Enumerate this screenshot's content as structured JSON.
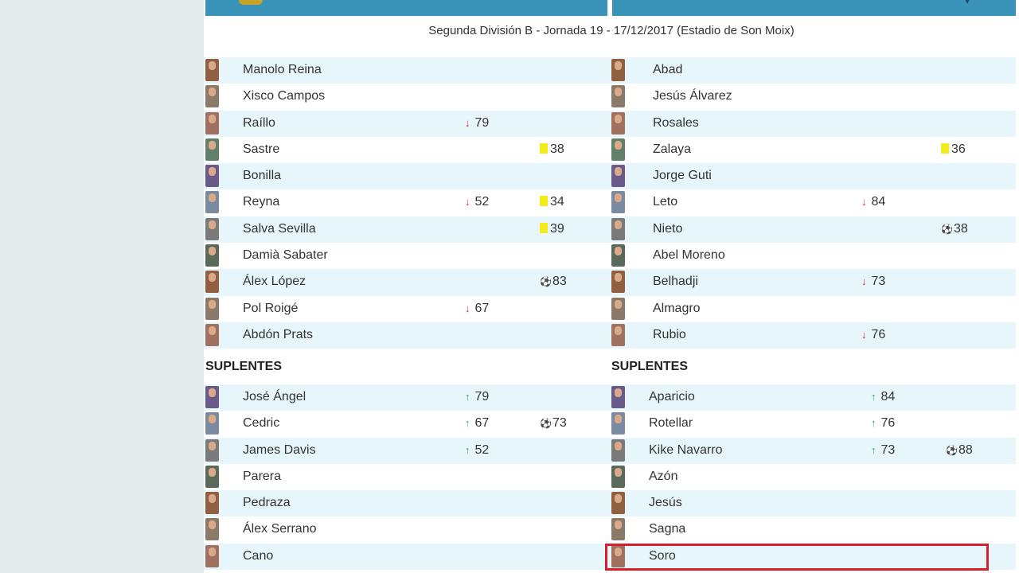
{
  "match": {
    "subtitle": "Segunda División B - Jornada 19 - 17/12/2017 (Estadio de Son Moix)"
  },
  "home": {
    "starters": [
      {
        "name": "Manolo Reina"
      },
      {
        "name": "Xisco Campos"
      },
      {
        "name": "Raíllo",
        "sub_out": "79"
      },
      {
        "name": "Sastre",
        "card": "38"
      },
      {
        "name": "Bonilla"
      },
      {
        "name": "Reyna",
        "sub_out": "52",
        "card": "34"
      },
      {
        "name": "Salva Sevilla",
        "card": "39"
      },
      {
        "name": "Damià Sabater"
      },
      {
        "name": "Álex López",
        "goal": "83"
      },
      {
        "name": "Pol Roigé",
        "sub_out": "67"
      },
      {
        "name": "Abdón Prats"
      }
    ],
    "subs_label": "SUPLENTES",
    "subs": [
      {
        "name": "José Ángel",
        "sub_in": "79"
      },
      {
        "name": "Cedric",
        "sub_in": "67",
        "goal": "73"
      },
      {
        "name": "James Davis",
        "sub_in": "52"
      },
      {
        "name": "Parera"
      },
      {
        "name": "Pedraza"
      },
      {
        "name": "Álex Serrano"
      },
      {
        "name": "Cano"
      }
    ]
  },
  "away": {
    "starters": [
      {
        "name": "Abad"
      },
      {
        "name": "Jesús Álvarez"
      },
      {
        "name": "Rosales"
      },
      {
        "name": "Zalaya",
        "card": "36"
      },
      {
        "name": "Jorge Guti"
      },
      {
        "name": "Leto",
        "sub_out": "84"
      },
      {
        "name": "Nieto",
        "goal": "38"
      },
      {
        "name": "Abel Moreno"
      },
      {
        "name": "Belhadji",
        "sub_out": "73"
      },
      {
        "name": "Almagro"
      },
      {
        "name": "Rubio",
        "sub_out": "76"
      }
    ],
    "subs_label": "SUPLENTES",
    "subs": [
      {
        "name": "Aparicio",
        "sub_in": "84"
      },
      {
        "name": "Rotellar",
        "sub_in": "76"
      },
      {
        "name": "Kike Navarro",
        "sub_in": "73",
        "goal": "88"
      },
      {
        "name": "Azón"
      },
      {
        "name": "Jesús"
      },
      {
        "name": "Sagna"
      },
      {
        "name": "Soro"
      }
    ]
  },
  "icons": {
    "sub_out": "arrow-down-icon",
    "sub_in": "arrow-up-icon",
    "card": "yellow-card-icon",
    "goal": "ball-icon"
  },
  "colors": {
    "header": "#3a93b8",
    "stripe": "#e6f6fa",
    "sub_out": "#d02a3a",
    "sub_in": "#2fa86a",
    "card": "#f2ec1a",
    "highlight": "#d81e2c"
  }
}
